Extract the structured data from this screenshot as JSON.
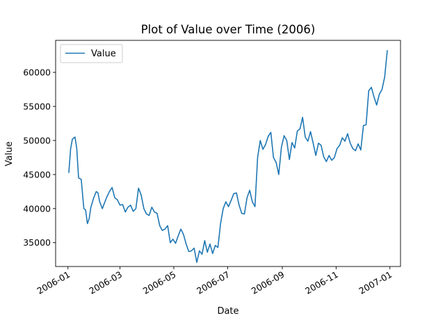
{
  "chart_data": {
    "type": "line",
    "title": "Plot of Value over Time (2006)",
    "xlabel": "Date",
    "ylabel": "Value",
    "x_ticks": [
      "2006-01",
      "2006-03",
      "2006-05",
      "2006-07",
      "2006-09",
      "2006-11",
      "2007-01"
    ],
    "y_ticks": [
      35000,
      40000,
      45000,
      50000,
      55000,
      60000
    ],
    "y_tick_labels": [
      "35000",
      "40000",
      "45000",
      "50000",
      "55000",
      "60000"
    ],
    "xlim": [
      "2005-12-18",
      "2007-01-13"
    ],
    "ylim": [
      31500,
      64700
    ],
    "grid": false,
    "legend_position": "top-left",
    "colors": {
      "line": "#1f77b4"
    },
    "series": [
      {
        "name": "Value",
        "x": [
          "2006-01-02",
          "2006-01-04",
          "2006-01-06",
          "2006-01-09",
          "2006-01-11",
          "2006-01-13",
          "2006-01-16",
          "2006-01-19",
          "2006-01-21",
          "2006-01-23",
          "2006-01-25",
          "2006-01-27",
          "2006-01-30",
          "2006-02-02",
          "2006-02-04",
          "2006-02-06",
          "2006-02-09",
          "2006-02-11",
          "2006-02-14",
          "2006-02-17",
          "2006-02-20",
          "2006-02-23",
          "2006-02-26",
          "2006-03-01",
          "2006-03-04",
          "2006-03-07",
          "2006-03-10",
          "2006-03-13",
          "2006-03-16",
          "2006-03-19",
          "2006-03-22",
          "2006-03-25",
          "2006-03-28",
          "2006-03-31",
          "2006-04-03",
          "2006-04-06",
          "2006-04-09",
          "2006-04-12",
          "2006-04-15",
          "2006-04-18",
          "2006-04-21",
          "2006-04-24",
          "2006-04-27",
          "2006-04-30",
          "2006-05-03",
          "2006-05-06",
          "2006-05-09",
          "2006-05-12",
          "2006-05-15",
          "2006-05-18",
          "2006-05-21",
          "2006-05-24",
          "2006-05-27",
          "2006-05-30",
          "2006-06-02",
          "2006-06-05",
          "2006-06-08",
          "2006-06-11",
          "2006-06-14",
          "2006-06-17",
          "2006-06-20",
          "2006-06-23",
          "2006-06-26",
          "2006-06-29",
          "2006-07-02",
          "2006-07-05",
          "2006-07-08",
          "2006-07-11",
          "2006-07-14",
          "2006-07-17",
          "2006-07-20",
          "2006-07-23",
          "2006-07-26",
          "2006-07-29",
          "2006-08-01",
          "2006-08-04",
          "2006-08-07",
          "2006-08-10",
          "2006-08-13",
          "2006-08-16",
          "2006-08-19",
          "2006-08-22",
          "2006-08-25",
          "2006-08-28",
          "2006-08-31",
          "2006-09-03",
          "2006-09-06",
          "2006-09-09",
          "2006-09-12",
          "2006-09-15",
          "2006-09-18",
          "2006-09-21",
          "2006-09-24",
          "2006-09-27",
          "2006-09-30",
          "2006-10-03",
          "2006-10-06",
          "2006-10-09",
          "2006-10-12",
          "2006-10-15",
          "2006-10-18",
          "2006-10-21",
          "2006-10-24",
          "2006-10-27",
          "2006-10-30",
          "2006-11-02",
          "2006-11-05",
          "2006-11-08",
          "2006-11-11",
          "2006-11-14",
          "2006-11-17",
          "2006-11-20",
          "2006-11-23",
          "2006-11-26",
          "2006-11-29",
          "2006-12-02",
          "2006-12-05",
          "2006-12-08",
          "2006-12-11",
          "2006-12-14",
          "2006-12-17",
          "2006-12-20",
          "2006-12-23",
          "2006-12-26",
          "2006-12-29"
        ],
        "values": [
          45300,
          48800,
          50200,
          50500,
          48800,
          44500,
          44300,
          40000,
          39800,
          37800,
          38500,
          40200,
          41500,
          42500,
          42300,
          41000,
          40000,
          40700,
          41700,
          42500,
          43100,
          41600,
          41300,
          40500,
          40600,
          39500,
          40200,
          40500,
          39600,
          40000,
          43000,
          42000,
          40000,
          39200,
          39000,
          40200,
          39500,
          39300,
          37500,
          36800,
          37000,
          37500,
          35000,
          35500,
          34900,
          36000,
          37000,
          36200,
          34800,
          33700,
          33800,
          34200,
          32100,
          33800,
          33300,
          35300,
          33600,
          34800,
          33400,
          34600,
          34300,
          37800,
          40000,
          41000,
          40300,
          41200,
          42200,
          42300,
          40500,
          39300,
          39200,
          41600,
          42700,
          41000,
          40300,
          47500,
          50000,
          48700,
          49400,
          50600,
          51200,
          47500,
          46800,
          45000,
          49000,
          50700,
          50000,
          47200,
          49700,
          48900,
          51400,
          51700,
          53400,
          50500,
          49900,
          51300,
          49600,
          47800,
          49600,
          49300,
          47600,
          46900,
          47800,
          47100,
          47500,
          48800,
          49300,
          50400,
          49900,
          51000,
          49600,
          48800,
          48500,
          49500,
          48600,
          52200,
          52300,
          57300,
          57800,
          56400,
          55200,
          56800,
          57500,
          59300,
          63200
        ]
      }
    ]
  }
}
